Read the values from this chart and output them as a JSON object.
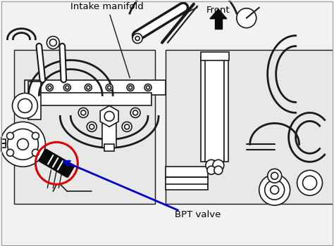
{
  "bg_color": "#f2f2f2",
  "label_intake": "Intake manifold",
  "label_front": "Front",
  "label_bpt": "BPT valve",
  "line_color": "#1a1a1a",
  "highlight_circle_color": "#dd0000",
  "arrow_color": "#0000cc",
  "black_fill": "#0a0a0a",
  "white_fill": "#ffffff",
  "gray_fill": "#cccccc",
  "light_gray": "#e8e8e8",
  "font_size_labels": 9.5,
  "fig_width": 4.74,
  "fig_height": 3.5,
  "dpi": 100
}
